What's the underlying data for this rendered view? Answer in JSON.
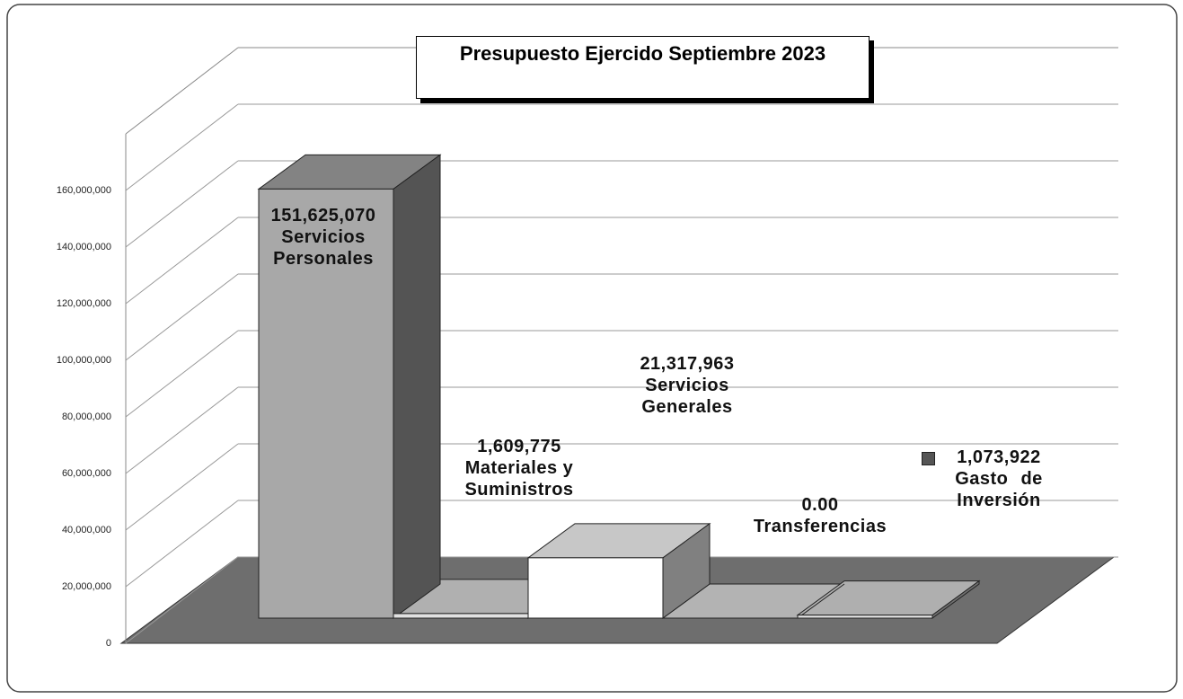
{
  "chart_data": {
    "type": "bar3d",
    "title": "Presupuesto Ejercido Septiembre 2023",
    "categories": [
      "Servicios Personales",
      "Materiales y Suministros",
      "Servicios Generales",
      "Transferencias",
      "Gasto de Inversión"
    ],
    "values": [
      151625070,
      1609775,
      21317963,
      0,
      1073922
    ],
    "value_labels": [
      "151,625,070",
      "1,609,775",
      "21,317,963",
      "0.00",
      "1,073,922"
    ],
    "colors": [
      "#a8a8a8",
      "#e2e2e2",
      "#ffffff",
      "#e6e6e6",
      "#e0e0e0"
    ],
    "ylim": [
      0,
      180000000
    ],
    "yticks": [
      {
        "value": 0,
        "label": "0"
      },
      {
        "value": 20000000,
        "label": "20,000,000"
      },
      {
        "value": 40000000,
        "label": "40,000,000"
      },
      {
        "value": 60000000,
        "label": "60,000,000"
      },
      {
        "value": 80000000,
        "label": "80,000,000"
      },
      {
        "value": 100000000,
        "label": "100,000,000"
      },
      {
        "value": 120000000,
        "label": "120,000,000"
      },
      {
        "value": 140000000,
        "label": "140,000,000"
      },
      {
        "value": 160000000,
        "label": "160,000,000"
      }
    ],
    "grid": true
  }
}
